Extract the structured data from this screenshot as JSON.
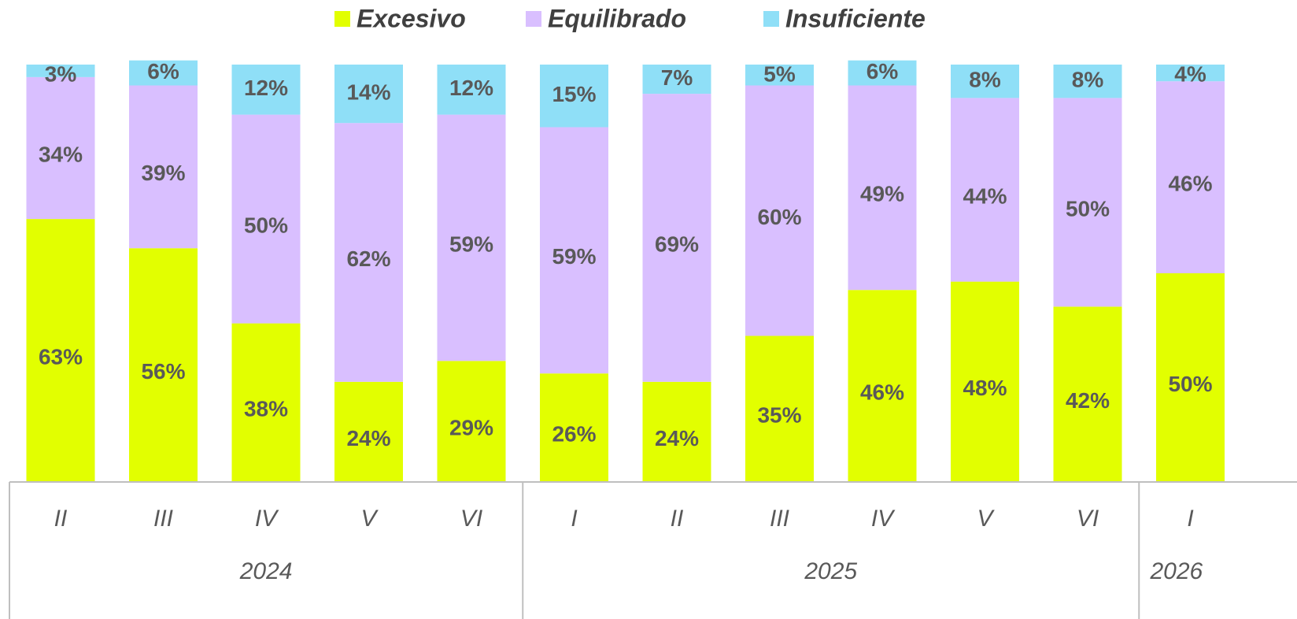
{
  "chart_data": {
    "type": "stacked_bar",
    "categories": [
      "II",
      "III",
      "IV",
      "V",
      "VI",
      "I",
      "II",
      "III",
      "IV",
      "V",
      "VI",
      "I"
    ],
    "category_groups": [
      "2024",
      "2024",
      "2024",
      "2024",
      "2024",
      "2025",
      "2025",
      "2025",
      "2025",
      "2025",
      "2025",
      "2026"
    ],
    "ylim": [
      0,
      100
    ],
    "series": [
      {
        "name": "Excesivo",
        "color": "#e2ff00",
        "values": [
          63,
          56,
          38,
          24,
          29,
          26,
          24,
          35,
          46,
          48,
          42,
          50
        ],
        "value_labels": [
          "63%",
          "56%",
          "38%",
          "24%",
          "29%",
          "26%",
          "24%",
          "35%",
          "46%",
          "48%",
          "42%",
          "50%"
        ]
      },
      {
        "name": "Equilibrado",
        "color": "#d9bfff",
        "values": [
          34,
          39,
          50,
          62,
          59,
          59,
          69,
          60,
          49,
          44,
          50,
          46
        ],
        "value_labels": [
          "34%",
          "39%",
          "50%",
          "62%",
          "59%",
          "59%",
          "69%",
          "60%",
          "49%",
          "44%",
          "50%",
          "46%"
        ]
      },
      {
        "name": "Insuficiente",
        "color": "#8fdff7",
        "values": [
          3,
          6,
          12,
          14,
          12,
          15,
          7,
          5,
          6,
          8,
          8,
          4
        ],
        "value_labels": [
          "3%",
          "6%",
          "12%",
          "14%",
          "12%",
          "15%",
          "7%",
          "5%",
          "6%",
          "8%",
          "8%",
          "4%"
        ]
      }
    ]
  }
}
